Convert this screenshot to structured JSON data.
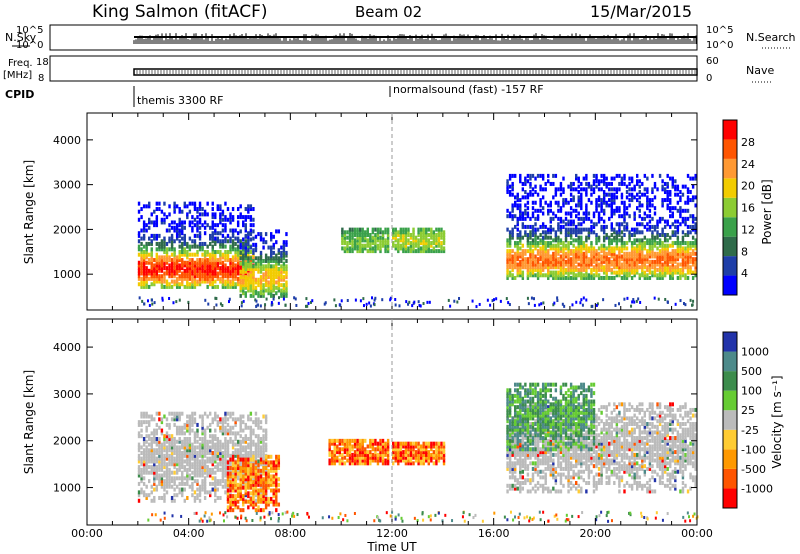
{
  "header": {
    "station": "King Salmon (fitACF)",
    "beam": "Beam 02",
    "date": "15/Mar/2015"
  },
  "aux": {
    "nsky_label": "N.Sky",
    "nsky_ticks": [
      "10^5",
      "10^0"
    ],
    "nsearch_label": "N.Search",
    "freq_label_1": "Freq.",
    "freq_label_2": "[MHz]",
    "freq_ticks": [
      "18",
      "8"
    ],
    "nave_ticks": [
      "60",
      "0"
    ],
    "nave_label": "Nave",
    "cpid_label": "CPID",
    "cpid_1": "themis 3300 RF",
    "cpid_2": "normalsound (fast) -157 RF"
  },
  "colors": {
    "power": [
      "#0000ff",
      "#1e3ea8",
      "#2f6b4a",
      "#3aa14a",
      "#8ccc33",
      "#f2cc00",
      "#ff9933",
      "#ff5500",
      "#ff0000"
    ],
    "velocity": [
      "#2233aa",
      "#4d8a8a",
      "#3c8c4c",
      "#66cc33",
      "#bbbbbb",
      "#ffcc33",
      "#ff9900",
      "#ff5500",
      "#ff0000"
    ],
    "ground_scatter": "#bbbbbb"
  },
  "chart_data": [
    {
      "type": "heatmap",
      "title": "Power",
      "xlabel": "Time UT",
      "ylabel": "Slant Range [km]",
      "x_ticks": [
        "00:00",
        "04:00",
        "08:00",
        "12:00",
        "16:00",
        "20:00",
        "00:00"
      ],
      "xlim_hours": [
        0,
        24
      ],
      "ylim": [
        200,
        4600
      ],
      "y_ticks": [
        1000,
        2000,
        3000,
        4000
      ],
      "colorbar_label": "Power [dB]",
      "colorbar_ticks": [
        "4",
        "8",
        "12",
        "16",
        "20",
        "24",
        "28"
      ],
      "colorbar_range": [
        0,
        30
      ],
      "echo_regions": [
        {
          "t0": 2.0,
          "t1": 6.5,
          "r0": 700,
          "r1": 2600,
          "peak_range": 1100,
          "peak_power": 26
        },
        {
          "t0": 6.0,
          "t1": 7.8,
          "r0": 500,
          "r1": 2000,
          "peak_range": 900,
          "peak_power": 18
        },
        {
          "t0": 10.0,
          "t1": 11.8,
          "r0": 1500,
          "r1": 2000,
          "peak_range": 1700,
          "peak_power": 12
        },
        {
          "t0": 12.0,
          "t1": 14.0,
          "r0": 1500,
          "r1": 2000,
          "peak_range": 1750,
          "peak_power": 14
        },
        {
          "t0": 16.5,
          "t1": 24.0,
          "r0": 900,
          "r1": 3200,
          "peak_range": 1300,
          "peak_power": 22
        }
      ]
    },
    {
      "type": "heatmap",
      "title": "Velocity",
      "xlabel": "Time UT",
      "ylabel": "Slant Range [km]",
      "x_ticks": [
        "00:00",
        "04:00",
        "08:00",
        "12:00",
        "16:00",
        "20:00",
        "00:00"
      ],
      "xlim_hours": [
        0,
        24
      ],
      "ylim": [
        200,
        4600
      ],
      "y_ticks": [
        1000,
        2000,
        3000,
        4000
      ],
      "colorbar_label": "Velocity [m s⁻¹]",
      "colorbar_ticks": [
        "1000",
        "500",
        "100",
        "25",
        "-25",
        "-100",
        "-500",
        "-1000"
      ],
      "echo_regions": [
        {
          "t0": 2.0,
          "t1": 7.0,
          "r0": 700,
          "r1": 2600,
          "class": "ground"
        },
        {
          "t0": 5.5,
          "t1": 7.5,
          "r0": 500,
          "r1": 1700,
          "class": "negative"
        },
        {
          "t0": 9.5,
          "t1": 11.8,
          "r0": 1500,
          "r1": 2000,
          "class": "negative"
        },
        {
          "t0": 12.0,
          "t1": 14.0,
          "r0": 1500,
          "r1": 1950,
          "class": "negative"
        },
        {
          "t0": 16.5,
          "t1": 24.0,
          "r0": 900,
          "r1": 2800,
          "class": "ground"
        },
        {
          "t0": 16.5,
          "t1": 20.0,
          "r0": 1800,
          "r1": 3200,
          "class": "positive"
        }
      ]
    }
  ]
}
